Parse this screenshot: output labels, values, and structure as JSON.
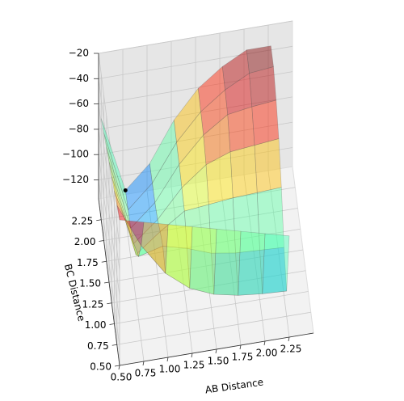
{
  "chart_data": {
    "type": "surface3d",
    "xlabel": "AB Distance",
    "ylabel": "BC Distance",
    "x": [
      0.5,
      0.75,
      1.0,
      1.25,
      1.5,
      1.75,
      2.0,
      2.25
    ],
    "y": [
      0.5,
      0.75,
      1.0,
      1.25,
      1.5,
      1.75,
      2.0,
      2.25
    ],
    "z": [
      [
        -20,
        -25,
        -30,
        -35,
        -40,
        -45,
        -50,
        -55
      ],
      [
        -25,
        -60,
        -85,
        -100,
        -108,
        -112,
        -114,
        -115
      ],
      [
        -30,
        -85,
        -80,
        -85,
        -92,
        -95,
        -96,
        -97
      ],
      [
        -35,
        -100,
        -85,
        -72,
        -70,
        -68,
        -67,
        -66
      ],
      [
        -40,
        -108,
        -92,
        -70,
        -55,
        -48,
        -46,
        -44
      ],
      [
        -45,
        -112,
        -95,
        -68,
        -48,
        -35,
        -32,
        -30
      ],
      [
        -50,
        -114,
        -96,
        -67,
        -46,
        -32,
        -22,
        -20
      ],
      [
        -55,
        -115,
        -97,
        -66,
        -44,
        -30,
        -20,
        -20
      ]
    ],
    "colormap": "jet",
    "alpha": 0.45,
    "point": {
      "x": 0.75,
      "y": 2.25,
      "z": -115,
      "color": "#000000"
    },
    "xlim": [
      0.5,
      2.5
    ],
    "ylim": [
      0.5,
      2.5
    ],
    "zlim": [
      -135,
      -20
    ],
    "xticks": [
      {
        "value": 0.5,
        "label": "0.50"
      },
      {
        "value": 0.75,
        "label": "0.75"
      },
      {
        "value": 1.0,
        "label": "1.00"
      },
      {
        "value": 1.25,
        "label": "1.25"
      },
      {
        "value": 1.5,
        "label": "1.50"
      },
      {
        "value": 1.75,
        "label": "1.75"
      },
      {
        "value": 2.0,
        "label": "2.00"
      },
      {
        "value": 2.25,
        "label": "2.25"
      }
    ],
    "yticks": [
      {
        "value": 0.5,
        "label": "0.50"
      },
      {
        "value": 0.75,
        "label": "0.75"
      },
      {
        "value": 1.0,
        "label": "1.00"
      },
      {
        "value": 1.25,
        "label": "1.25"
      },
      {
        "value": 1.5,
        "label": "1.50"
      },
      {
        "value": 1.75,
        "label": "1.75"
      },
      {
        "value": 2.0,
        "label": "2.00"
      },
      {
        "value": 2.25,
        "label": "2.25"
      }
    ],
    "zticks": [
      {
        "value": -20,
        "label": "−20"
      },
      {
        "value": -40,
        "label": "−40"
      },
      {
        "value": -60,
        "label": "−60"
      },
      {
        "value": -80,
        "label": "−80"
      },
      {
        "value": -100,
        "label": "−100"
      },
      {
        "value": -120,
        "label": "−120"
      }
    ],
    "grid": true
  }
}
